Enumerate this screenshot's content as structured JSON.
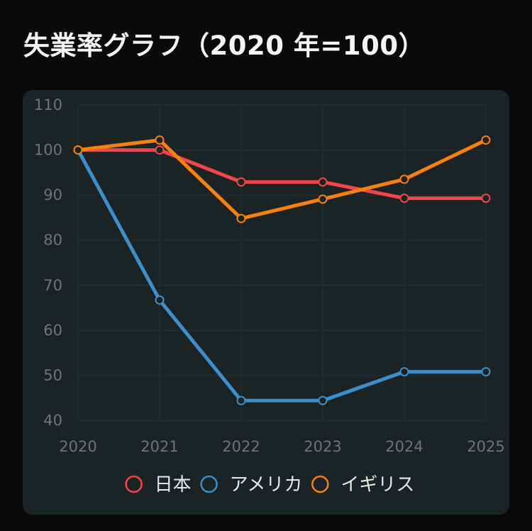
{
  "title": "失業率グラフ（2020 年=100）",
  "chart_data": {
    "type": "line",
    "title": "失業率グラフ（2020 年=100）",
    "xlabel": "",
    "ylabel": "",
    "categories": [
      "2020",
      "2021",
      "2022",
      "2023",
      "2024",
      "2025"
    ],
    "ylim": [
      40,
      110
    ],
    "yticks": [
      40,
      50,
      60,
      70,
      80,
      90,
      100,
      110
    ],
    "grid": true,
    "legend_position": "bottom",
    "series": [
      {
        "name": "日本",
        "color": "#f44648",
        "values": [
          100,
          100,
          92.9,
          92.9,
          89.3,
          89.3
        ]
      },
      {
        "name": "アメリカ",
        "color": "#3c8fcb",
        "values": [
          100,
          66.7,
          44.4,
          44.4,
          50.8,
          50.8
        ]
      },
      {
        "name": "イギリス",
        "color": "#f8800f",
        "values": [
          100,
          102.2,
          84.8,
          89.1,
          93.5,
          102.2
        ]
      }
    ]
  }
}
